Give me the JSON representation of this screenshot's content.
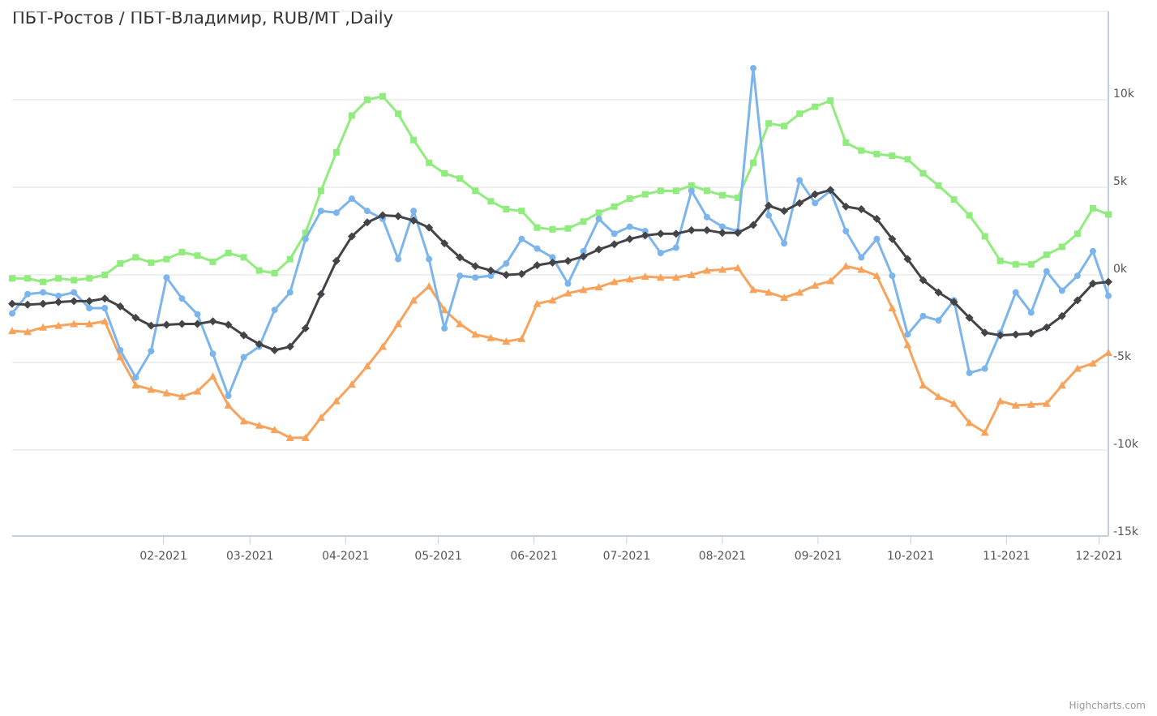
{
  "chart_data": {
    "type": "line",
    "title": "ПБТ-Ростов / ПБТ-Владимир, RUB/MT ,Daily",
    "xlabel": "",
    "ylabel": "",
    "x_start": "2020-12-14",
    "x_end": "2021-12-04",
    "x_step_days": 5,
    "ylim": [
      -15000,
      15000
    ],
    "yticks": [
      10000,
      5000,
      0,
      -5000,
      -10000,
      -15000
    ],
    "ytick_labels": [
      "10k",
      "5k",
      "0k",
      "-5k",
      "-10k",
      "-15k"
    ],
    "xticks": [
      "2021-02-01",
      "2021-03-01",
      "2021-04-01",
      "2021-05-01",
      "2021-06-01",
      "2021-07-01",
      "2021-08-01",
      "2021-09-01",
      "2021-10-01",
      "2021-11-01",
      "2021-12-01"
    ],
    "xtick_labels": [
      "02-2021",
      "03-2021",
      "04-2021",
      "05-2021",
      "06-2021",
      "07-2021",
      "08-2021",
      "09-2021",
      "10-2021",
      "11-2021",
      "12-2021"
    ],
    "grid": true,
    "legend": "none",
    "series": [
      {
        "color": "#90ed7d",
        "marker": "square",
        "values": [
          -200,
          -200,
          -400,
          -200,
          -300,
          -200,
          0,
          650,
          1000,
          700,
          900,
          1300,
          1100,
          750,
          1250,
          1000,
          250,
          100,
          900,
          2400,
          4800,
          7000,
          9100,
          10000,
          10200,
          9200,
          7700,
          6400,
          5800,
          5500,
          4800,
          4200,
          3750,
          3650,
          2700,
          2600,
          2650,
          3050,
          3550,
          3900,
          4350,
          4600,
          4800,
          4800,
          5100,
          4800,
          4550,
          4400,
          6400,
          8650,
          8500,
          9200,
          9600,
          9950,
          7550,
          7100,
          6900,
          6800,
          6600,
          5800,
          5100,
          4300,
          3400,
          2200,
          800,
          600,
          600,
          1150,
          1600,
          2350,
          3800,
          3450
        ]
      },
      {
        "color": "#f7a35c",
        "marker": "triangle",
        "values": [
          -3200,
          -3250,
          -3000,
          -2900,
          -2800,
          -2800,
          -2650,
          -4700,
          -6300,
          -6550,
          -6750,
          -6950,
          -6650,
          -5800,
          -7450,
          -8350,
          -8600,
          -8850,
          -9300,
          -9300,
          -8150,
          -7200,
          -6250,
          -5200,
          -4100,
          -2800,
          -1450,
          -650,
          -2000,
          -2800,
          -3400,
          -3600,
          -3800,
          -3650,
          -1650,
          -1450,
          -1050,
          -850,
          -700,
          -400,
          -250,
          -100,
          -150,
          -150,
          0,
          250,
          300,
          400,
          -850,
          -1000,
          -1300,
          -1000,
          -600,
          -350,
          500,
          300,
          -50,
          -1900,
          -4000,
          -6300,
          -6950,
          -7350,
          -8450,
          -9000,
          -7200,
          -7450,
          -7400,
          -7350,
          -6300,
          -5350,
          -5050,
          -4450
        ]
      },
      {
        "color": "#7cb5ec",
        "marker": "circle",
        "values": [
          -2200,
          -1100,
          -1000,
          -1200,
          -1000,
          -1900,
          -1900,
          -4300,
          -5850,
          -4350,
          -150,
          -1350,
          -2250,
          -4500,
          -6900,
          -4700,
          -4100,
          -2000,
          -1000,
          2050,
          3650,
          3550,
          4350,
          3650,
          3200,
          900,
          3650,
          900,
          -3050,
          -50,
          -150,
          -50,
          650,
          2050,
          1500,
          1000,
          -500,
          1350,
          3200,
          2350,
          2750,
          2500,
          1250,
          1550,
          4800,
          3300,
          2750,
          2500,
          11800,
          3400,
          1800,
          5400,
          4100,
          4800,
          2500,
          1000,
          2050,
          -50,
          -3400,
          -2350,
          -2600,
          -1450,
          -5600,
          -5350,
          -3300,
          -1000,
          -2150,
          200,
          -900,
          -50,
          1350,
          -1200
        ]
      },
      {
        "color": "#434348",
        "marker": "diamond",
        "values": [
          -1650,
          -1700,
          -1650,
          -1550,
          -1500,
          -1500,
          -1350,
          -1800,
          -2450,
          -2900,
          -2850,
          -2800,
          -2800,
          -2650,
          -2850,
          -3450,
          -3950,
          -4300,
          -4100,
          -3050,
          -1100,
          800,
          2200,
          3000,
          3400,
          3350,
          3100,
          2700,
          1800,
          1000,
          500,
          250,
          0,
          50,
          550,
          700,
          800,
          1050,
          1450,
          1750,
          2050,
          2250,
          2350,
          2350,
          2550,
          2550,
          2400,
          2400,
          2850,
          3950,
          3650,
          4100,
          4600,
          4850,
          3900,
          3750,
          3200,
          2050,
          900,
          -300,
          -1000,
          -1550,
          -2450,
          -3300,
          -3450,
          -3400,
          -3350,
          -3000,
          -2350,
          -1450,
          -500,
          -400
        ]
      }
    ]
  },
  "credits": "Highcharts.com"
}
